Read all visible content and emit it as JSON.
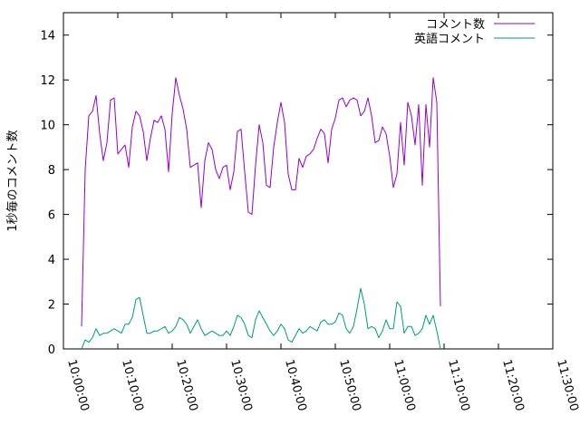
{
  "chart_data": {
    "type": "line",
    "ylabel": "1秒毎のコメント数",
    "xlabel": "",
    "title": "",
    "xlim": [
      "10:00:00",
      "11:30:00"
    ],
    "ylim": [
      0,
      15
    ],
    "x_ticks": [
      "10:00:00",
      "10:10:00",
      "10:20:00",
      "10:30:00",
      "10:40:00",
      "10:50:00",
      "11:00:00",
      "11:10:00",
      "11:20:00",
      "11:30:00"
    ],
    "y_ticks": [
      "0",
      "2",
      "4",
      "6",
      "8",
      "10",
      "12",
      "14"
    ],
    "grid": false,
    "legend_position": "top-right",
    "series": [
      {
        "name": "コメント数",
        "color": "#9400d3",
        "points": [
          [
            "10:03:20",
            1.0
          ],
          [
            "10:04:00",
            8.0
          ],
          [
            "10:04:40",
            10.4
          ],
          [
            "10:05:20",
            10.6
          ],
          [
            "10:06:00",
            11.3
          ],
          [
            "10:06:40",
            9.6
          ],
          [
            "10:07:20",
            8.4
          ],
          [
            "10:08:00",
            9.2
          ],
          [
            "10:08:40",
            11.1
          ],
          [
            "10:09:20",
            11.2
          ],
          [
            "10:10:00",
            8.7
          ],
          [
            "10:10:40",
            8.9
          ],
          [
            "10:11:20",
            9.1
          ],
          [
            "10:12:00",
            8.1
          ],
          [
            "10:12:40",
            9.9
          ],
          [
            "10:13:20",
            10.6
          ],
          [
            "10:14:00",
            10.4
          ],
          [
            "10:14:40",
            9.7
          ],
          [
            "10:15:20",
            8.4
          ],
          [
            "10:16:00",
            9.4
          ],
          [
            "10:16:40",
            10.2
          ],
          [
            "10:17:20",
            10.1
          ],
          [
            "10:18:00",
            10.4
          ],
          [
            "10:18:40",
            9.8
          ],
          [
            "10:19:20",
            7.9
          ],
          [
            "10:20:00",
            10.5
          ],
          [
            "10:20:40",
            12.1
          ],
          [
            "10:21:20",
            11.3
          ],
          [
            "10:22:00",
            10.7
          ],
          [
            "10:22:40",
            9.8
          ],
          [
            "10:23:20",
            8.1
          ],
          [
            "10:24:00",
            8.2
          ],
          [
            "10:24:40",
            8.3
          ],
          [
            "10:25:20",
            6.3
          ],
          [
            "10:26:00",
            8.4
          ],
          [
            "10:26:40",
            9.2
          ],
          [
            "10:27:20",
            8.9
          ],
          [
            "10:28:00",
            8.0
          ],
          [
            "10:28:40",
            7.6
          ],
          [
            "10:29:20",
            8.1
          ],
          [
            "10:30:00",
            8.2
          ],
          [
            "10:30:40",
            7.1
          ],
          [
            "10:31:20",
            7.9
          ],
          [
            "10:32:00",
            9.7
          ],
          [
            "10:32:40",
            9.8
          ],
          [
            "10:33:20",
            7.9
          ],
          [
            "10:34:00",
            6.1
          ],
          [
            "10:34:40",
            6.0
          ],
          [
            "10:35:20",
            8.2
          ],
          [
            "10:36:00",
            10.0
          ],
          [
            "10:36:40",
            9.2
          ],
          [
            "10:37:20",
            7.3
          ],
          [
            "10:38:00",
            7.2
          ],
          [
            "10:38:40",
            9.0
          ],
          [
            "10:39:20",
            10.1
          ],
          [
            "10:40:00",
            11.0
          ],
          [
            "10:40:40",
            10.1
          ],
          [
            "10:41:20",
            7.8
          ],
          [
            "10:42:00",
            7.1
          ],
          [
            "10:42:40",
            7.1
          ],
          [
            "10:43:20",
            8.5
          ],
          [
            "10:44:00",
            8.1
          ],
          [
            "10:44:40",
            8.6
          ],
          [
            "10:45:20",
            8.7
          ],
          [
            "10:46:00",
            8.9
          ],
          [
            "10:46:40",
            9.4
          ],
          [
            "10:47:20",
            9.8
          ],
          [
            "10:48:00",
            9.6
          ],
          [
            "10:48:40",
            8.3
          ],
          [
            "10:49:20",
            9.8
          ],
          [
            "10:50:00",
            10.3
          ],
          [
            "10:50:40",
            11.1
          ],
          [
            "10:51:20",
            11.2
          ],
          [
            "10:52:00",
            10.8
          ],
          [
            "10:52:40",
            11.1
          ],
          [
            "10:53:20",
            11.2
          ],
          [
            "10:54:00",
            11.1
          ],
          [
            "10:54:40",
            10.4
          ],
          [
            "10:55:20",
            10.6
          ],
          [
            "10:56:00",
            11.2
          ],
          [
            "10:56:40",
            10.4
          ],
          [
            "10:57:20",
            9.2
          ],
          [
            "10:58:00",
            9.3
          ],
          [
            "10:58:40",
            9.9
          ],
          [
            "10:59:20",
            9.6
          ],
          [
            "11:00:00",
            8.6
          ],
          [
            "11:00:40",
            7.2
          ],
          [
            "11:01:20",
            7.8
          ],
          [
            "11:02:00",
            10.1
          ],
          [
            "11:02:40",
            8.2
          ],
          [
            "11:03:20",
            11.0
          ],
          [
            "11:04:00",
            10.4
          ],
          [
            "11:04:40",
            9.1
          ],
          [
            "11:05:20",
            10.9
          ],
          [
            "11:06:00",
            7.3
          ],
          [
            "11:06:40",
            10.9
          ],
          [
            "11:07:20",
            9.0
          ],
          [
            "11:08:00",
            12.1
          ],
          [
            "11:08:40",
            11.0
          ],
          [
            "11:09:20",
            1.9
          ]
        ]
      },
      {
        "name": "英語コメント",
        "color": "#009e73",
        "points": [
          [
            "10:03:20",
            0.0
          ],
          [
            "10:04:00",
            0.4
          ],
          [
            "10:04:40",
            0.3
          ],
          [
            "10:05:20",
            0.5
          ],
          [
            "10:06:00",
            0.9
          ],
          [
            "10:06:40",
            0.6
          ],
          [
            "10:07:20",
            0.7
          ],
          [
            "10:08:00",
            0.7
          ],
          [
            "10:08:40",
            0.8
          ],
          [
            "10:09:20",
            0.9
          ],
          [
            "10:10:00",
            0.8
          ],
          [
            "10:10:40",
            0.7
          ],
          [
            "10:11:20",
            1.1
          ],
          [
            "10:12:00",
            1.1
          ],
          [
            "10:12:40",
            1.4
          ],
          [
            "10:13:20",
            2.2
          ],
          [
            "10:14:00",
            2.3
          ],
          [
            "10:14:40",
            1.5
          ],
          [
            "10:15:20",
            0.7
          ],
          [
            "10:16:00",
            0.7
          ],
          [
            "10:16:40",
            0.8
          ],
          [
            "10:17:20",
            0.8
          ],
          [
            "10:18:00",
            0.9
          ],
          [
            "10:18:40",
            1.0
          ],
          [
            "10:19:20",
            0.7
          ],
          [
            "10:20:00",
            0.8
          ],
          [
            "10:20:40",
            1.0
          ],
          [
            "10:21:20",
            1.4
          ],
          [
            "10:22:00",
            1.3
          ],
          [
            "10:22:40",
            1.1
          ],
          [
            "10:23:20",
            0.7
          ],
          [
            "10:24:00",
            1.0
          ],
          [
            "10:24:40",
            1.3
          ],
          [
            "10:25:20",
            0.9
          ],
          [
            "10:26:00",
            0.6
          ],
          [
            "10:26:40",
            0.7
          ],
          [
            "10:27:20",
            0.8
          ],
          [
            "10:28:00",
            0.7
          ],
          [
            "10:28:40",
            0.6
          ],
          [
            "10:29:20",
            0.6
          ],
          [
            "10:30:00",
            0.8
          ],
          [
            "10:30:40",
            0.6
          ],
          [
            "10:31:20",
            1.0
          ],
          [
            "10:32:00",
            1.5
          ],
          [
            "10:32:40",
            1.4
          ],
          [
            "10:33:20",
            1.1
          ],
          [
            "10:34:00",
            0.6
          ],
          [
            "10:34:40",
            0.5
          ],
          [
            "10:35:20",
            1.3
          ],
          [
            "10:36:00",
            1.7
          ],
          [
            "10:36:40",
            1.4
          ],
          [
            "10:37:20",
            1.1
          ],
          [
            "10:38:00",
            0.8
          ],
          [
            "10:38:40",
            0.6
          ],
          [
            "10:39:20",
            0.8
          ],
          [
            "10:40:00",
            1.1
          ],
          [
            "10:40:40",
            0.9
          ],
          [
            "10:41:20",
            0.4
          ],
          [
            "10:42:00",
            0.3
          ],
          [
            "10:42:40",
            0.6
          ],
          [
            "10:43:20",
            0.9
          ],
          [
            "10:44:00",
            0.7
          ],
          [
            "10:44:40",
            0.8
          ],
          [
            "10:45:20",
            1.0
          ],
          [
            "10:46:00",
            0.9
          ],
          [
            "10:46:40",
            0.8
          ],
          [
            "10:47:20",
            1.2
          ],
          [
            "10:48:00",
            1.3
          ],
          [
            "10:48:40",
            1.1
          ],
          [
            "10:49:20",
            1.1
          ],
          [
            "10:50:00",
            1.2
          ],
          [
            "10:50:40",
            1.6
          ],
          [
            "10:51:20",
            1.5
          ],
          [
            "10:52:00",
            0.9
          ],
          [
            "10:52:40",
            0.7
          ],
          [
            "10:53:20",
            1.0
          ],
          [
            "10:54:00",
            1.8
          ],
          [
            "10:54:40",
            2.7
          ],
          [
            "10:55:20",
            2.0
          ],
          [
            "10:56:00",
            0.9
          ],
          [
            "10:56:40",
            1.0
          ],
          [
            "10:57:20",
            0.9
          ],
          [
            "10:58:00",
            0.5
          ],
          [
            "10:58:40",
            0.8
          ],
          [
            "10:59:20",
            1.3
          ],
          [
            "11:00:00",
            0.9
          ],
          [
            "11:00:40",
            0.9
          ],
          [
            "11:01:20",
            2.1
          ],
          [
            "11:02:00",
            1.9
          ],
          [
            "11:02:40",
            0.7
          ],
          [
            "11:03:20",
            1.0
          ],
          [
            "11:04:00",
            1.0
          ],
          [
            "11:04:40",
            0.6
          ],
          [
            "11:05:20",
            0.7
          ],
          [
            "11:06:00",
            0.9
          ],
          [
            "11:06:40",
            1.5
          ],
          [
            "11:07:20",
            1.1
          ],
          [
            "11:08:00",
            1.5
          ],
          [
            "11:08:40",
            0.8
          ],
          [
            "11:09:20",
            0.0
          ]
        ]
      }
    ]
  }
}
